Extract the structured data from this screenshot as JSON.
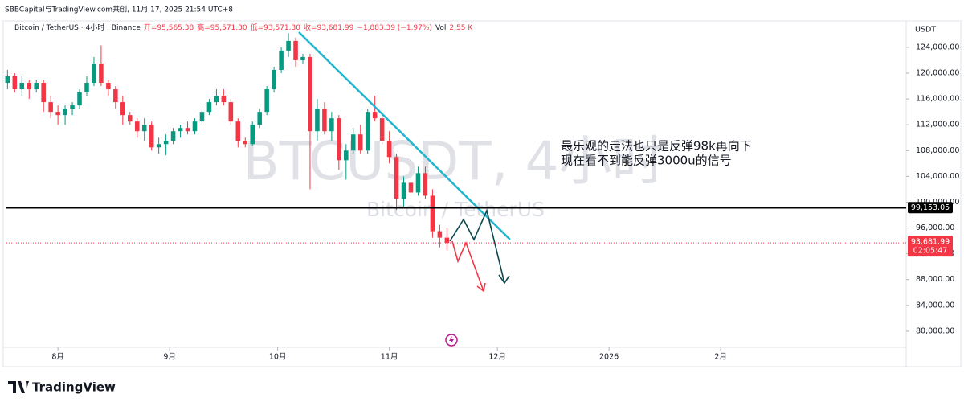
{
  "chart_data": {
    "type": "candlestick",
    "source": "SBBCapital与TradingView.com共创, 11月 17, 2025 21:54 UTC+8",
    "symbol": "Bitcoin / TetherUS · 4小时 · Binance",
    "ohlc": [
      "开=95,565.38",
      "高=95,571.30",
      "低=93,571.30",
      "收=93,681.99",
      "−1,883.39 (−1.97%)"
    ],
    "volume_label": "Vol",
    "volume": "2.55 K",
    "watermark": "BTCUSDT, 4小时",
    "watermark_sub": "Bitcoin / TetherUS",
    "annotation": [
      "最乐观的走法也只是反弹98k再向下",
      "现在看不到能反弹3000u的信号"
    ],
    "currency": "USDT",
    "brand": "TradingView",
    "up_color": "#089981",
    "down_color": "#f23645",
    "xlim": [
      -14.3,
      235.5
    ],
    "xticks": [
      {
        "value": 0,
        "label": "8月"
      },
      {
        "value": 31,
        "label": "9月"
      },
      {
        "value": 61,
        "label": "10月"
      },
      {
        "value": 92,
        "label": "11月"
      },
      {
        "value": 122,
        "label": "12月"
      },
      {
        "value": 153,
        "label": "2026"
      },
      {
        "value": 184,
        "label": "2月"
      }
    ],
    "ylim": [
      77500,
      127850
    ],
    "yticks": [
      {
        "value": 80000,
        "label": "80,000.00"
      },
      {
        "value": 84000,
        "label": "84,000.00"
      },
      {
        "value": 88000,
        "label": "88,000.00"
      },
      {
        "value": 92000,
        "label": "92,000.00"
      },
      {
        "value": 96000,
        "label": "96,000.00"
      },
      {
        "value": 100000,
        "label": "100,000.00"
      },
      {
        "value": 104000,
        "label": "104,000.00"
      },
      {
        "value": 108000,
        "label": "108,000.00"
      },
      {
        "value": 112000,
        "label": "112,000.00"
      },
      {
        "value": 116000,
        "label": "116,000.00"
      },
      {
        "value": 120000,
        "label": "120,000.00"
      },
      {
        "value": 124000,
        "label": "124,000.00"
      }
    ],
    "hline": {
      "value": 99153.05,
      "label": "99,153.05"
    },
    "last_price": {
      "value": 93681.99,
      "label": "93,681.99"
    },
    "countdown": "02:05:47",
    "candles": {
      "x": [
        -14,
        -12,
        -10,
        -8,
        -6,
        -4,
        -2,
        0,
        2,
        4,
        6,
        8,
        10,
        12,
        14,
        16,
        18,
        20,
        22,
        24,
        26,
        28,
        30,
        32,
        34,
        36,
        38,
        40,
        42,
        44,
        46,
        48,
        50,
        52,
        54,
        56,
        58,
        60,
        62,
        64,
        66,
        68,
        70,
        72,
        74,
        76,
        78,
        80,
        82,
        84,
        86,
        88,
        90,
        92,
        94,
        96,
        98,
        100,
        102,
        104,
        106,
        108
      ],
      "open": [
        118500,
        119500,
        117500,
        118500,
        117500,
        118500,
        115500,
        114000,
        113500,
        114500,
        115000,
        117000,
        118500,
        121500,
        118500,
        117500,
        115500,
        113500,
        112500,
        111000,
        112000,
        108500,
        109000,
        109500,
        111000,
        111500,
        111000,
        112500,
        114000,
        115500,
        116500,
        115500,
        112500,
        109500,
        109000,
        112000,
        114000,
        117500,
        120500,
        123500,
        125000,
        122000,
        122500,
        111000,
        114500,
        111000,
        113000,
        106500,
        108000,
        110500,
        108000,
        114000,
        113000,
        109500,
        107000,
        100500,
        103000,
        101500,
        104500,
        101000,
        95500,
        94500
      ],
      "high": [
        120500,
        120000,
        119500,
        119000,
        119000,
        119000,
        116500,
        115000,
        115000,
        115500,
        117500,
        119500,
        122500,
        124300,
        119000,
        118000,
        116500,
        114000,
        113000,
        113000,
        112500,
        110000,
        110500,
        111500,
        112000,
        112500,
        113000,
        114500,
        116000,
        117500,
        117500,
        116000,
        113000,
        110000,
        112500,
        114500,
        118000,
        121000,
        124000,
        126200,
        125500,
        123000,
        123000,
        116000,
        115500,
        114000,
        113500,
        109000,
        111500,
        112000,
        114500,
        116500,
        113500,
        111000,
        107500,
        104000,
        106500,
        105500,
        105500,
        102000,
        96500,
        96000
      ],
      "low": [
        117500,
        117000,
        116500,
        116000,
        117000,
        114000,
        113000,
        112000,
        112000,
        113500,
        114500,
        116500,
        118000,
        118000,
        116500,
        114500,
        112000,
        112000,
        110000,
        109500,
        108000,
        107500,
        107300,
        109000,
        110000,
        110500,
        110500,
        112000,
        113500,
        115000,
        115000,
        112000,
        108500,
        108500,
        108800,
        111500,
        113500,
        117000,
        120000,
        122500,
        121000,
        121500,
        102000,
        109500,
        110500,
        109500,
        105000,
        103500,
        107500,
        107500,
        107500,
        112500,
        109000,
        106000,
        98800,
        99000,
        100500,
        101000,
        100500,
        94500,
        93000,
        92500
      ],
      "close": [
        119500,
        117500,
        118500,
        117500,
        118500,
        115500,
        114000,
        113500,
        114500,
        115000,
        117000,
        118500,
        121500,
        118500,
        117500,
        115500,
        113500,
        112500,
        111000,
        112000,
        108500,
        109000,
        109500,
        111000,
        111500,
        111000,
        112500,
        114000,
        115500,
        116500,
        115500,
        112500,
        109500,
        109000,
        112000,
        114000,
        117500,
        120500,
        123500,
        125000,
        122000,
        122500,
        111000,
        114500,
        111000,
        113000,
        106500,
        108000,
        110500,
        108000,
        114000,
        113000,
        109500,
        107000,
        100500,
        103000,
        101500,
        104500,
        101000,
        95500,
        94500,
        93681.99
      ]
    }
  }
}
